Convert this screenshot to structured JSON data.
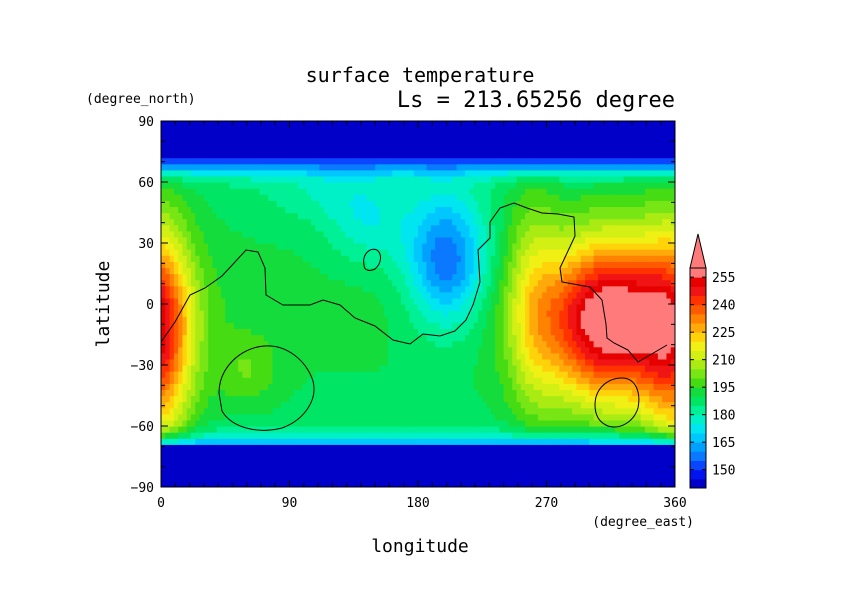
{
  "chart_data": {
    "type": "heatmap",
    "title": "surface temperature",
    "subtitle": "Ls = 213.65256 degree",
    "xlabel": "longitude",
    "ylabel": "latitude",
    "x_unit": "(degree_east)",
    "y_unit": "(degree_north)",
    "xlim": [
      0,
      360
    ],
    "ylim": [
      -90,
      90
    ],
    "x_ticks": [
      0,
      90,
      180,
      270,
      360
    ],
    "y_ticks": [
      -90,
      -60,
      -30,
      0,
      30,
      60,
      90
    ],
    "x_tick_labels": [
      "0",
      "90",
      "180",
      "270",
      "360"
    ],
    "y_tick_labels": [
      "−90",
      "−60",
      "−30",
      "0",
      "30",
      "60",
      "90"
    ],
    "colorbar": {
      "tick_labels": [
        "150",
        "165",
        "180",
        "195",
        "210",
        "225",
        "240",
        "255"
      ],
      "ticks": [
        150,
        165,
        180,
        195,
        210,
        225,
        240,
        255
      ],
      "levels": [
        140,
        145,
        150,
        155,
        160,
        165,
        170,
        175,
        180,
        185,
        190,
        195,
        200,
        205,
        210,
        215,
        220,
        225,
        230,
        235,
        240,
        245,
        250,
        255,
        260
      ],
      "colors": [
        "#0000c8",
        "#0014f0",
        "#0a46ff",
        "#0a78ff",
        "#00a0ff",
        "#00c8ff",
        "#00e6f0",
        "#00f0c8",
        "#00f096",
        "#00e664",
        "#14dc3c",
        "#46dc14",
        "#78e614",
        "#aaeb14",
        "#d2f014",
        "#f0f014",
        "#ffd20a",
        "#ffaa0a",
        "#ff8200",
        "#ff5a00",
        "#ff3200",
        "#f01414",
        "#e60000",
        "#ff7b7b"
      ],
      "extend": "max"
    },
    "grid": false,
    "z_samples": [
      {
        "lon": 5,
        "lat": -30,
        "value": 262
      },
      {
        "lon": 60,
        "lat": -30,
        "value": 200
      },
      {
        "lon": 60,
        "lat": 0,
        "value": 197
      },
      {
        "lon": 30,
        "lat": 30,
        "value": 190
      },
      {
        "lon": 150,
        "lat": 30,
        "value": 165
      },
      {
        "lon": 200,
        "lat": 15,
        "value": 148
      },
      {
        "lon": 180,
        "lat": -30,
        "value": 190
      },
      {
        "lon": 310,
        "lat": 0,
        "value": 262
      },
      {
        "lon": 310,
        "lat": -40,
        "value": 262
      },
      {
        "lon": 180,
        "lat": 80,
        "value": 145
      },
      {
        "lon": 180,
        "lat": -80,
        "value": 145
      }
    ]
  }
}
